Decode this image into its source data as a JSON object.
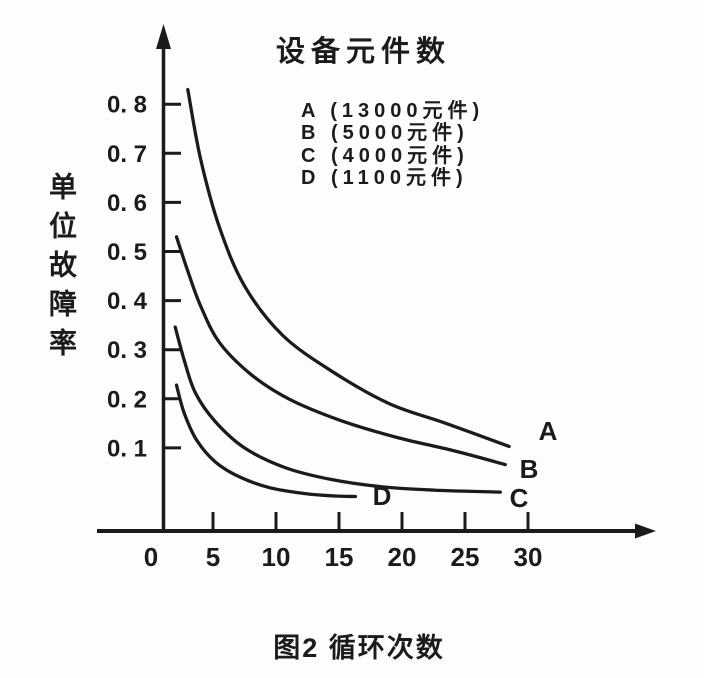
{
  "colors": {
    "paper": "#fdfdfb",
    "ink": "#1b1b1b"
  },
  "chart_data": {
    "type": "line",
    "title": "设备元件数",
    "caption": "图2 循环次数",
    "xlabel": "循环次数",
    "ylabel": "单位故障率",
    "grid": false,
    "legend_position": "top-center-inside",
    "legend": [
      "A (13000元件)",
      "B (5000元件)",
      "C (4000元件)",
      "D (1100元件)"
    ],
    "x_tick_labels": [
      "0",
      "5",
      "10",
      "15",
      "20",
      "25",
      "30"
    ],
    "x_tick_values": [
      0,
      5,
      10,
      15,
      20,
      25,
      30
    ],
    "y_tick_labels": [
      "0. 8",
      "0. 7",
      "0. 6",
      "0. 5",
      "0. 4",
      "0. 3",
      "0. 2",
      "0. 1"
    ],
    "y_tick_values": [
      0.8,
      0.7,
      0.6,
      0.5,
      0.4,
      0.3,
      0.2,
      0.1
    ],
    "xlim": [
      0,
      34
    ],
    "ylim": [
      0,
      0.9
    ],
    "series": [
      {
        "name": "A",
        "components": "13000元件",
        "points": [
          [
            3,
            0.83
          ],
          [
            4,
            0.69
          ],
          [
            5.5,
            0.55
          ],
          [
            7.5,
            0.43
          ],
          [
            10.5,
            0.33
          ],
          [
            14.5,
            0.255
          ],
          [
            19,
            0.19
          ],
          [
            23.5,
            0.15
          ],
          [
            28.5,
            0.103
          ]
        ]
      },
      {
        "name": "B",
        "components": "5000元件",
        "points": [
          [
            2.1,
            0.53
          ],
          [
            3,
            0.46
          ],
          [
            4,
            0.39
          ],
          [
            5.5,
            0.315
          ],
          [
            8,
            0.25
          ],
          [
            11,
            0.2
          ],
          [
            15,
            0.157
          ],
          [
            19.5,
            0.122
          ],
          [
            24,
            0.095
          ],
          [
            28.2,
            0.066
          ]
        ]
      },
      {
        "name": "C",
        "components": "4000元件",
        "points": [
          [
            2,
            0.346
          ],
          [
            2.7,
            0.28
          ],
          [
            3.6,
            0.212
          ],
          [
            5.2,
            0.153
          ],
          [
            7.5,
            0.1
          ],
          [
            10.7,
            0.06
          ],
          [
            14.3,
            0.036
          ],
          [
            18.3,
            0.021
          ],
          [
            22.5,
            0.014
          ],
          [
            27.8,
            0.01
          ]
        ]
      },
      {
        "name": "D",
        "components": "1100元件",
        "points": [
          [
            2.1,
            0.228
          ],
          [
            2.7,
            0.172
          ],
          [
            3.7,
            0.116
          ],
          [
            5.2,
            0.071
          ],
          [
            7.1,
            0.041
          ],
          [
            9.5,
            0.019
          ],
          [
            12.3,
            0.007
          ],
          [
            14.7,
            0.002
          ],
          [
            16.3,
            0.001
          ]
        ]
      }
    ]
  }
}
